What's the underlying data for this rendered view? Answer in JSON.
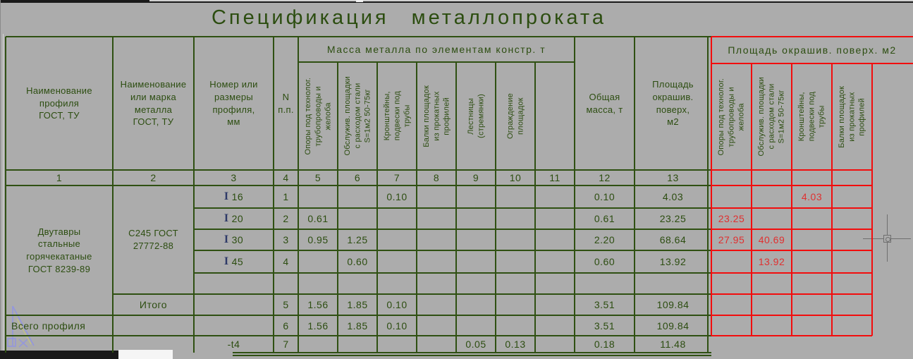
{
  "title": "Спецификация металлопроката",
  "colors": {
    "grid_green": "#2f5012",
    "grid_red": "#f20d0d",
    "text_green": "#2c4d10",
    "text_red": "#e03030",
    "beam_symbol_navy": "#2e3a68",
    "background": "#acacac",
    "ucs_icon_blue": "#9295e0"
  },
  "table": {
    "beam_symbol": "I",
    "headers": {
      "c1": "Наименование\nпрофиля\nГОСТ,  ТУ",
      "c2": "Наименование\nили марка\nметалла\nГОСТ,  ТУ",
      "c3": "Номер или\nразмеры\nпрофиля,\nмм",
      "c4": "N\nп.п.",
      "mass_band": "Масса металла по элементам констр. т",
      "c12": "Общая\nмасса,  т",
      "c13": "Площадь\nокрашив.\nповерх,\nм2"
    },
    "rotated_headers": [
      "Опоры под технолог.\nтрубопроводы и\nжелоба",
      "Обслужив. площадки\nс расходом стали\nS=1м2 50-75кг",
      "Кронштейны,\nподвески под\nтрубы",
      "Балки площадок\nиз прокатных\nпрофилей",
      "Лестницы\n(стремянки)",
      "Ограждение\nплощадок",
      ""
    ],
    "column_numbers": [
      "1",
      "2",
      "3",
      "4",
      "5",
      "6",
      "7",
      "8",
      "9",
      "10",
      "11",
      "12",
      "13"
    ],
    "merged": {
      "profile_group": "Двутавры\nстальные\nгорячекатаные\nГОСТ 8239-89",
      "steel_grade": "С245  ГОСТ\n27772-88"
    },
    "rows": [
      {
        "beam": true,
        "c3": "16",
        "c4": "1",
        "c7": "0.10",
        "c12": "0.10",
        "c13": "4.03",
        "r3": "4.03"
      },
      {
        "beam": true,
        "c3": "20",
        "c4": "2",
        "c5": "0.61",
        "c12": "0.61",
        "c13": "23.25",
        "r1": "23.25"
      },
      {
        "beam": true,
        "c3": "30",
        "c4": "3",
        "c5": "0.95",
        "c6": "1.25",
        "c12": "2.20",
        "c13": "68.64",
        "r1": "27.95",
        "r2": "40.69"
      },
      {
        "beam": true,
        "c3": "45",
        "c4": "4",
        "c6": "0.60",
        "c12": "0.60",
        "c13": "13.92",
        "r2": "13.92"
      },
      {},
      {
        "c2": "Итого",
        "c4": "5",
        "c5": "1.56",
        "c6": "1.85",
        "c7": "0.10",
        "c12": "3.51",
        "c13": "109.84"
      },
      {
        "c1": "Всего профиля",
        "align_c1": "left",
        "c4": "6",
        "c5": "1.56",
        "c6": "1.85",
        "c7": "0.10",
        "c12": "3.51",
        "c13": "109.84"
      },
      {
        "c3": "-t4",
        "c4": "7",
        "c9": "0.05",
        "c10": "0.13",
        "c12": "0.18",
        "c13": "11.48"
      }
    ],
    "red_section": {
      "band": "Площадь окрашив. поверх. м2",
      "rotated_headers": [
        "Опоры под технолог.\nтрубопроводы и\nжелоба",
        "Обслужив. площадки\nс расходом стали\nS=1м2 50-75кг",
        "Кронштейны,\nподвески под\nтрубы",
        "Балки площадок\nиз прокатных\nпрофилей"
      ]
    }
  }
}
